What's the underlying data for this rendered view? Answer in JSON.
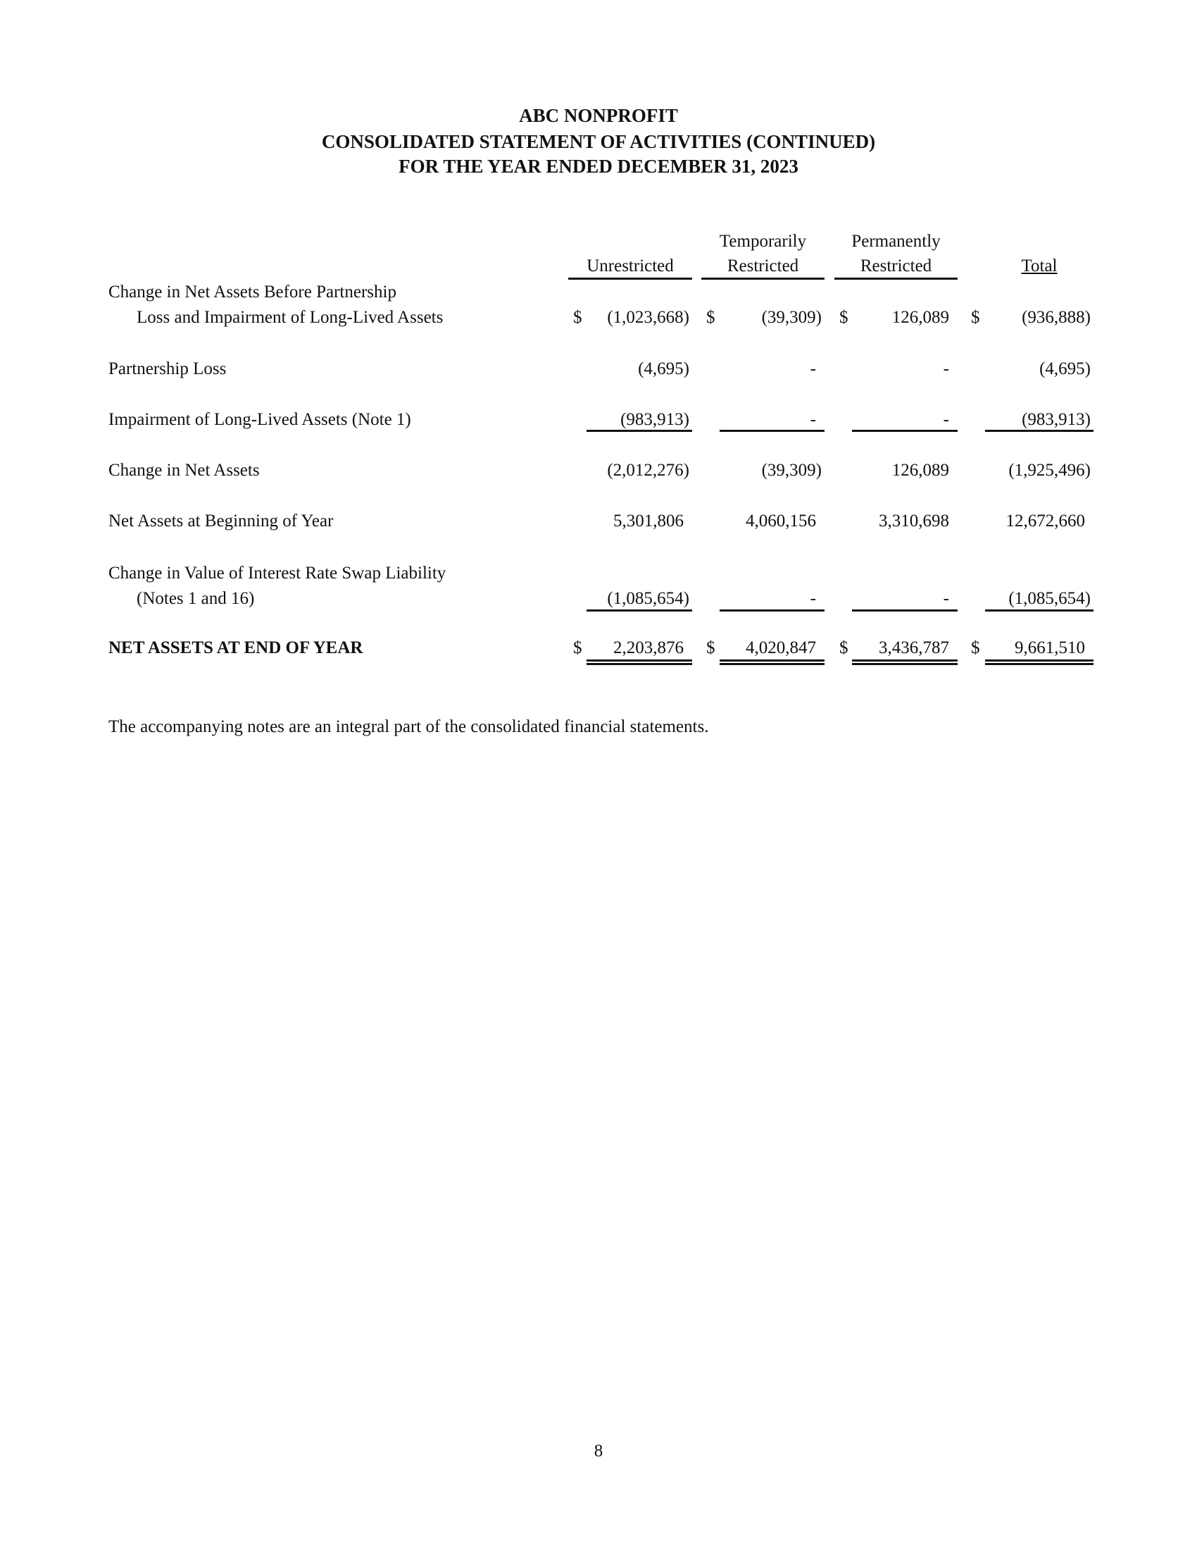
{
  "header": {
    "org": "ABC NONPROFIT",
    "statement": "CONSOLIDATED STATEMENT OF ACTIVITIES (CONTINUED)",
    "period": "FOR THE YEAR ENDED DECEMBER 31, 2023"
  },
  "columns": {
    "unrestricted": "Unrestricted",
    "temporarily_line1": "Temporarily",
    "temporarily_line2": "Restricted",
    "permanently_line1": "Permanently",
    "permanently_line2": "Restricted",
    "total": "Total"
  },
  "currency_symbol": "$",
  "rows": {
    "before": {
      "label1": "Change in  Net Assets Before Partnership",
      "label2": "Loss and Impairment of Long-Lived Assets",
      "u": "(1,023,668)",
      "t": "(39,309)",
      "p": "126,089",
      "x": "(936,888)"
    },
    "partnership": {
      "label": "Partnership Loss",
      "u": "(4,695)",
      "t": "-",
      "p": "-",
      "x": "(4,695)"
    },
    "impairment": {
      "label": "Impairment of Long-Lived Assets (Note 1)",
      "u": "(983,913)",
      "t": "-",
      "p": "-",
      "x": "(983,913)"
    },
    "change": {
      "label": "Change in Net Assets",
      "u": "(2,012,276)",
      "t": "(39,309)",
      "p": "126,089",
      "x": "(1,925,496)"
    },
    "beginning": {
      "label": "Net Assets at Beginning of Year",
      "u": "5,301,806",
      "t": "4,060,156",
      "p": "3,310,698",
      "x": "12,672,660"
    },
    "swap": {
      "label1": "Change in Value of Interest Rate Swap Liability",
      "label2": "(Notes 1 and 16)",
      "u": "(1,085,654)",
      "t": "-",
      "p": "-",
      "x": "(1,085,654)"
    },
    "end": {
      "label": "NET ASSETS AT END OF YEAR",
      "u": "2,203,876",
      "t": "4,020,847",
      "p": "3,436,787",
      "x": "9,661,510"
    }
  },
  "footnote": "The accompanying notes are an integral part of the consolidated financial statements.",
  "page_number": "8"
}
